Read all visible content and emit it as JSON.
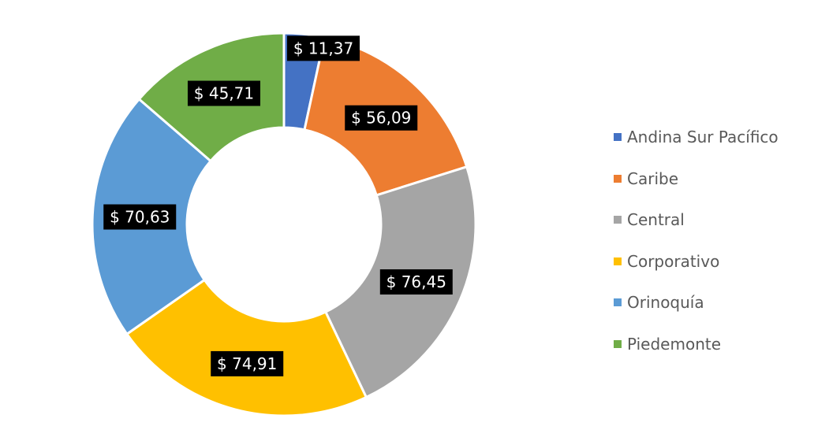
{
  "chart_data": {
    "type": "pie",
    "variant": "donut",
    "currency_prefix": "$ ",
    "decimal_separator": ",",
    "slices": [
      {
        "label": "Andina Sur Pacífico",
        "value": 11.37,
        "display": "$ 11,37",
        "color": "#4472C4"
      },
      {
        "label": "Caribe",
        "value": 56.09,
        "display": "$ 56,09",
        "color": "#ED7D31"
      },
      {
        "label": "Central",
        "value": 76.45,
        "display": "$ 76,45",
        "color": "#A5A5A5"
      },
      {
        "label": "Corporativo",
        "value": 74.91,
        "display": "$ 74,91",
        "color": "#FFC000"
      },
      {
        "label": "Orinoquía",
        "value": 70.63,
        "display": "$ 70,63",
        "color": "#5B9BD5"
      },
      {
        "label": "Piedemonte",
        "value": 45.71,
        "display": "$ 45,71",
        "color": "#70AD47"
      }
    ],
    "legend_position": "right",
    "label_style": "white text on black box"
  }
}
